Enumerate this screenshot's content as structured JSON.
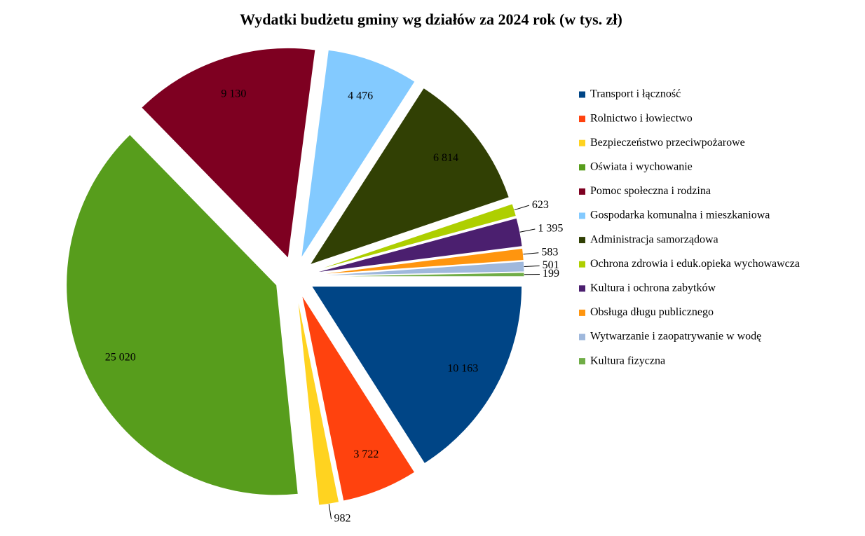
{
  "chart_data": {
    "type": "pie",
    "title": "Wydatki  budżetu gminy wg działów za 2024 rok (w tys. zł)",
    "categories": [
      "Transport i łączność",
      "Rolnictwo i łowiectwo",
      "Bezpieczeństwo przeciwpożarowe",
      "Oświata i wychowanie",
      "Pomoc społeczna i rodzina",
      "Gospodarka komunalna i mieszkaniowa",
      "Administracja samorządowa",
      "Ochrona zdrowia i eduk.opieka wychowawcza",
      "Kultura i ochrona zabytków",
      "Obsługa długu publicznego",
      "Wytwarzanie i zaopatrywanie w wodę",
      "Kultura fizyczna"
    ],
    "values": [
      10163,
      3722,
      982,
      25020,
      9130,
      4476,
      6814,
      623,
      1395,
      583,
      501,
      199
    ],
    "value_labels": [
      "10 163",
      "3 722",
      "982",
      "25 020",
      "9 130",
      "4 476",
      "6 814",
      "623",
      "1 395",
      "583",
      "501",
      "199"
    ],
    "colors": [
      "#004586",
      "#ff420e",
      "#ffd320",
      "#579d1c",
      "#7e0021",
      "#83caff",
      "#314004",
      "#aecf00",
      "#4b1f6f",
      "#ff950e",
      "#9fb8dc",
      "#70ad47"
    ],
    "legend": "right"
  }
}
